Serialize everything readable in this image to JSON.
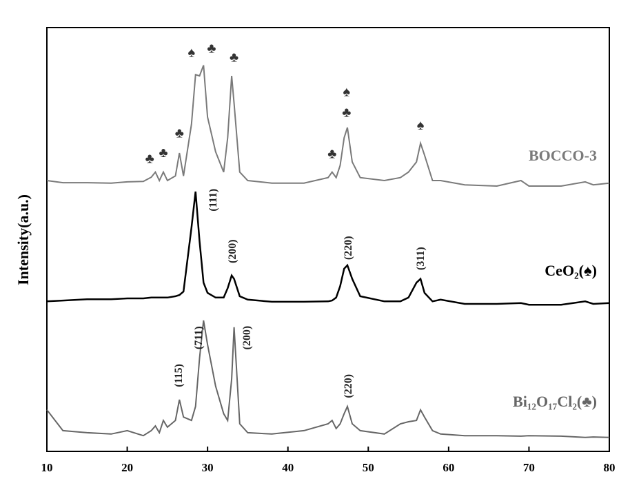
{
  "chart_data": {
    "type": "line",
    "y_label": "Intensity(a.u.)",
    "xlim": [
      10,
      80
    ],
    "xticks": [
      10,
      20,
      30,
      40,
      50,
      60,
      70,
      80
    ],
    "ylim": [
      0,
      100
    ],
    "x": [
      10,
      12,
      15,
      18,
      20,
      22,
      23,
      23.5,
      24,
      24.5,
      25,
      26,
      26.5,
      27,
      28,
      28.5,
      29,
      29.5,
      30,
      31,
      32,
      32.5,
      33,
      33.3,
      34,
      35,
      38,
      42,
      45,
      45.5,
      46,
      46.5,
      47,
      47.4,
      48,
      49,
      52,
      54,
      55,
      56,
      56.5,
      57,
      58,
      59,
      62,
      66,
      69,
      70,
      74,
      77,
      78,
      80
    ],
    "series": [
      {
        "name": "BOCCO-3",
        "color": "#7a7a7a",
        "values": [
          63.9,
          63.4,
          63.4,
          63.3,
          63.6,
          63.7,
          64.7,
          65.9,
          63.9,
          65.9,
          63.9,
          65.0,
          70.4,
          65.0,
          77.2,
          88.9,
          88.6,
          91.1,
          78.9,
          70.7,
          65.9,
          74.0,
          88.6,
          82.1,
          65.9,
          63.9,
          63.3,
          63.3,
          64.6,
          65.9,
          64.6,
          67.5,
          74.0,
          76.4,
          68.3,
          64.6,
          63.9,
          64.6,
          65.9,
          68.3,
          72.7,
          69.9,
          63.9,
          63.9,
          62.9,
          62.6,
          63.9,
          62.6,
          62.6,
          63.6,
          62.9,
          63.3
        ]
      },
      {
        "name": "CeO₂(♠)",
        "color": "#000000",
        "values": [
          35.4,
          35.6,
          35.9,
          35.9,
          36.1,
          36.1,
          36.3,
          36.3,
          36.3,
          36.3,
          36.3,
          36.6,
          36.9,
          37.7,
          52.8,
          61.3,
          49.6,
          39.8,
          37.4,
          36.3,
          36.3,
          38.5,
          41.5,
          40.7,
          36.6,
          35.8,
          35.3,
          35.3,
          35.4,
          35.6,
          36.3,
          39.0,
          43.1,
          43.9,
          40.7,
          36.6,
          35.4,
          35.4,
          36.3,
          39.8,
          40.7,
          37.4,
          35.4,
          35.8,
          34.8,
          34.8,
          35.0,
          34.6,
          34.6,
          35.4,
          34.8,
          35.0
        ]
      },
      {
        "name": "Bi₁₂O₁₇Cl₂(♣)",
        "color": "#666666",
        "values": [
          9.8,
          4.9,
          4.4,
          4.1,
          4.9,
          3.7,
          4.9,
          6.0,
          4.4,
          7.3,
          5.7,
          7.3,
          12.2,
          8.1,
          7.3,
          10.6,
          22.0,
          30.9,
          25.2,
          15.4,
          8.9,
          7.3,
          17.1,
          29.3,
          6.5,
          4.4,
          4.1,
          4.9,
          6.5,
          7.3,
          5.4,
          6.5,
          8.9,
          10.6,
          6.5,
          4.9,
          4.1,
          6.5,
          7.0,
          7.3,
          9.8,
          8.1,
          4.9,
          4.1,
          3.7,
          3.7,
          3.6,
          3.7,
          3.6,
          3.3,
          3.4,
          3.3
        ]
      }
    ],
    "annotations": [
      {
        "text": "(111)",
        "x": 30.8,
        "y": 59.3,
        "rotated": true
      },
      {
        "text": "(200)",
        "x": 33.2,
        "y": 47.2,
        "rotated": true
      },
      {
        "text": "(220)",
        "x": 47.6,
        "y": 48.0,
        "rotated": true
      },
      {
        "text": "(311)",
        "x": 56.6,
        "y": 45.5,
        "rotated": true
      },
      {
        "text": "(115)",
        "x": 26.5,
        "y": 17.9,
        "rotated": true
      },
      {
        "text": "(711)",
        "x": 29.0,
        "y": 26.8,
        "rotated": true
      },
      {
        "text": "(200)",
        "x": 35.0,
        "y": 26.8,
        "rotated": true
      },
      {
        "text": "(220)",
        "x": 47.6,
        "y": 15.4,
        "rotated": true
      },
      {
        "text": "♣",
        "x": 22.8,
        "y": 68.8,
        "rotated": false
      },
      {
        "text": "♣",
        "x": 24.5,
        "y": 70.2,
        "rotated": false
      },
      {
        "text": "♣",
        "x": 26.5,
        "y": 74.8,
        "rotated": false
      },
      {
        "text": "♠",
        "x": 28.0,
        "y": 93.8,
        "rotated": false
      },
      {
        "text": "♣",
        "x": 30.5,
        "y": 94.8,
        "rotated": false
      },
      {
        "text": "♣",
        "x": 33.3,
        "y": 92.7,
        "rotated": false
      },
      {
        "text": "♣",
        "x": 45.5,
        "y": 69.9,
        "rotated": false
      },
      {
        "text": "♣",
        "x": 47.3,
        "y": 79.7,
        "rotated": false
      },
      {
        "text": "♠",
        "x": 47.3,
        "y": 84.6,
        "rotated": false
      },
      {
        "text": "♠",
        "x": 56.5,
        "y": 76.7,
        "rotated": false
      }
    ]
  }
}
